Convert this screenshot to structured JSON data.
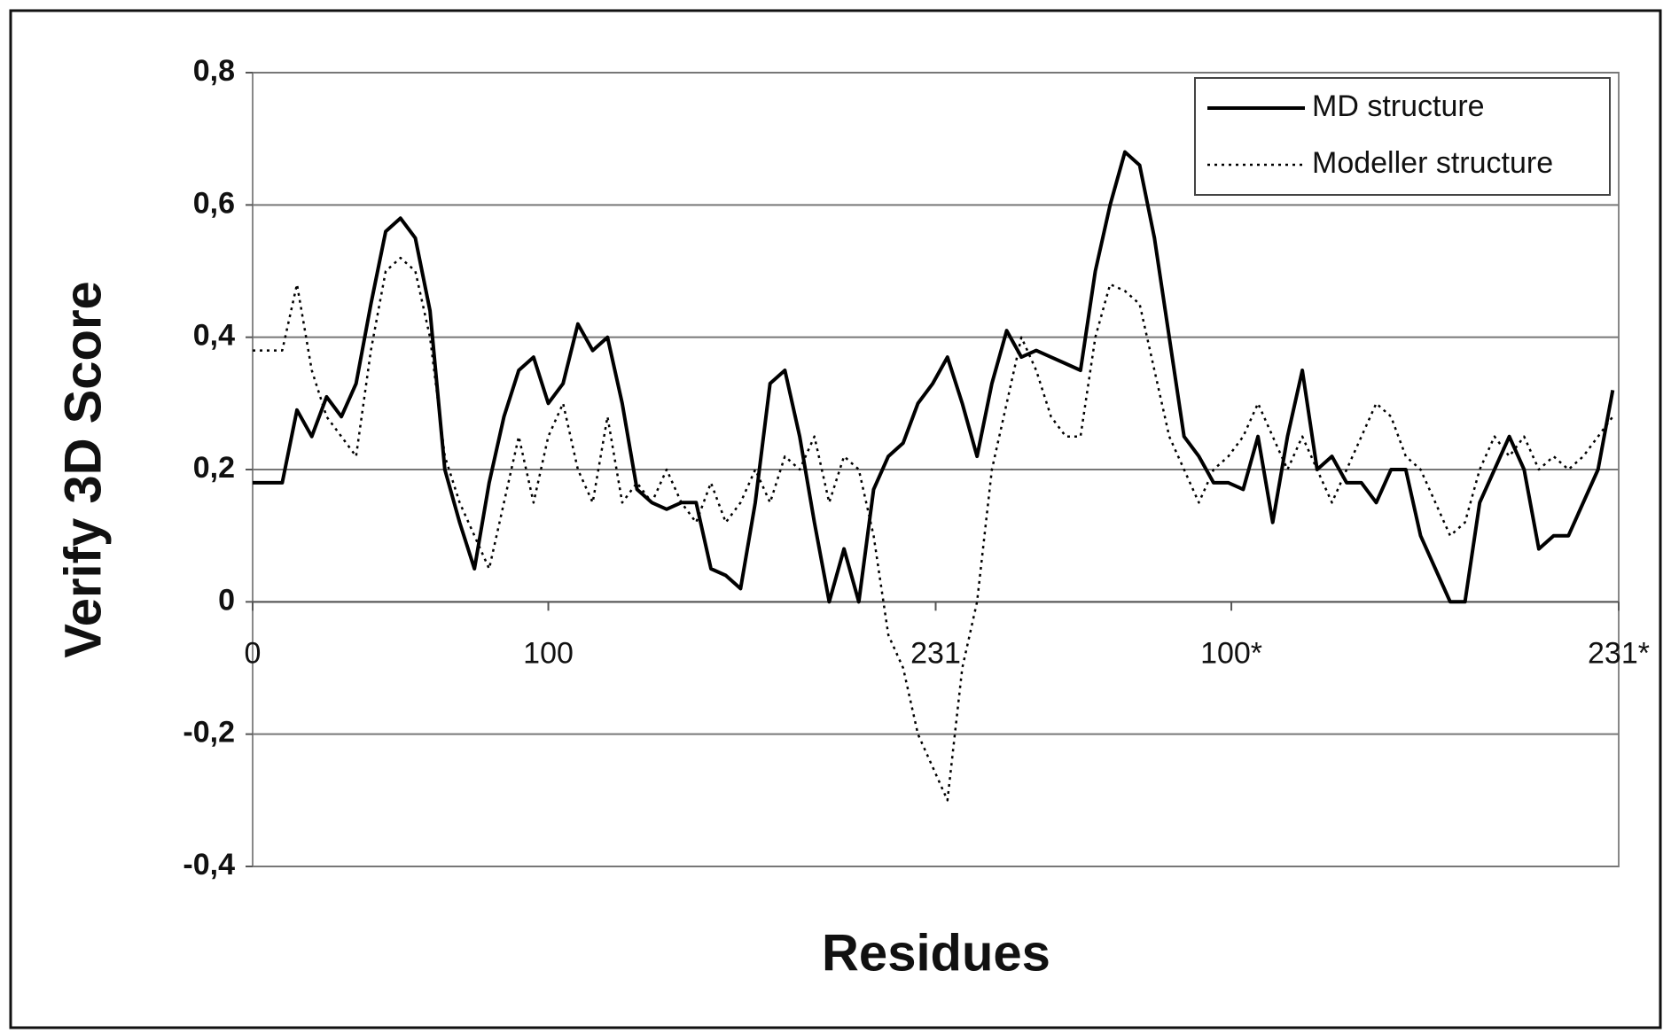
{
  "chart_data": {
    "type": "line",
    "xlabel": "Residues",
    "ylabel": "Verify 3D Score",
    "xlim": [
      0,
      462
    ],
    "xticks": [
      0,
      100,
      {
        "value": 231,
        "label": "231"
      },
      {
        "value": 331,
        "label": "100*"
      },
      {
        "value": 462,
        "label": "231*"
      }
    ],
    "ylim": [
      -0.4,
      0.8
    ],
    "yticks": [
      {
        "value": -0.4,
        "label": "-0,4"
      },
      {
        "value": -0.2,
        "label": "-0,2"
      },
      0,
      {
        "value": 0.2,
        "label": "0,2"
      },
      {
        "value": 0.4,
        "label": "0,4"
      },
      {
        "value": 0.6,
        "label": "0,6"
      },
      {
        "value": 0.8,
        "label": "0,8"
      }
    ],
    "grid": true,
    "legend": "upper right",
    "x": [
      0,
      5,
      10,
      15,
      20,
      25,
      30,
      35,
      40,
      45,
      50,
      55,
      60,
      65,
      70,
      75,
      80,
      85,
      90,
      95,
      100,
      105,
      110,
      115,
      120,
      125,
      130,
      135,
      140,
      145,
      150,
      155,
      160,
      165,
      170,
      175,
      180,
      185,
      190,
      195,
      200,
      205,
      210,
      215,
      220,
      225,
      230,
      235,
      240,
      245,
      250,
      255,
      260,
      265,
      270,
      275,
      280,
      285,
      290,
      295,
      300,
      305,
      310,
      315,
      320,
      325,
      330,
      335,
      340,
      345,
      350,
      355,
      360,
      365,
      370,
      375,
      380,
      385,
      390,
      395,
      400,
      405,
      410,
      415,
      420,
      425,
      430,
      435,
      440,
      445,
      450,
      455,
      460
    ],
    "series": [
      {
        "name": "MD structure",
        "color": "#000000",
        "linestyle": "solid",
        "values": [
          0.18,
          0.18,
          0.18,
          0.29,
          0.25,
          0.31,
          0.28,
          0.33,
          0.45,
          0.56,
          0.58,
          0.55,
          0.44,
          0.2,
          0.12,
          0.05,
          0.18,
          0.28,
          0.35,
          0.37,
          0.3,
          0.33,
          0.42,
          0.38,
          0.4,
          0.3,
          0.17,
          0.15,
          0.14,
          0.15,
          0.15,
          0.05,
          0.04,
          0.02,
          0.15,
          0.33,
          0.35,
          0.25,
          0.12,
          0.0,
          0.08,
          0.0,
          0.17,
          0.22,
          0.24,
          0.3,
          0.33,
          0.37,
          0.3,
          0.22,
          0.33,
          0.41,
          0.37,
          0.38,
          0.37,
          0.36,
          0.35,
          0.5,
          0.6,
          0.68,
          0.66,
          0.55,
          0.4,
          0.25,
          0.22,
          0.18,
          0.18,
          0.17,
          0.25,
          0.12,
          0.25,
          0.35,
          0.2,
          0.22,
          0.18,
          0.18,
          0.15,
          0.2,
          0.2,
          0.1,
          0.05,
          0.0,
          0.0,
          0.15,
          0.2,
          0.25,
          0.2,
          0.08,
          0.1,
          0.1,
          0.15,
          0.2,
          0.32
        ]
      },
      {
        "name": "Modeller structure",
        "color": "#000000",
        "linestyle": "dotted",
        "values": [
          0.38,
          0.38,
          0.38,
          0.48,
          0.35,
          0.28,
          0.25,
          0.22,
          0.38,
          0.5,
          0.52,
          0.5,
          0.4,
          0.22,
          0.15,
          0.1,
          0.05,
          0.15,
          0.25,
          0.15,
          0.25,
          0.3,
          0.2,
          0.15,
          0.28,
          0.15,
          0.18,
          0.15,
          0.2,
          0.15,
          0.12,
          0.18,
          0.12,
          0.15,
          0.2,
          0.15,
          0.22,
          0.2,
          0.25,
          0.15,
          0.22,
          0.2,
          0.1,
          -0.05,
          -0.1,
          -0.2,
          -0.25,
          -0.3,
          -0.1,
          0.0,
          0.2,
          0.3,
          0.4,
          0.35,
          0.28,
          0.25,
          0.25,
          0.4,
          0.48,
          0.47,
          0.45,
          0.35,
          0.25,
          0.2,
          0.15,
          0.2,
          0.22,
          0.25,
          0.3,
          0.25,
          0.2,
          0.25,
          0.2,
          0.15,
          0.2,
          0.25,
          0.3,
          0.28,
          0.22,
          0.2,
          0.15,
          0.1,
          0.12,
          0.2,
          0.25,
          0.22,
          0.25,
          0.2,
          0.22,
          0.2,
          0.22,
          0.25,
          0.28
        ]
      }
    ]
  }
}
